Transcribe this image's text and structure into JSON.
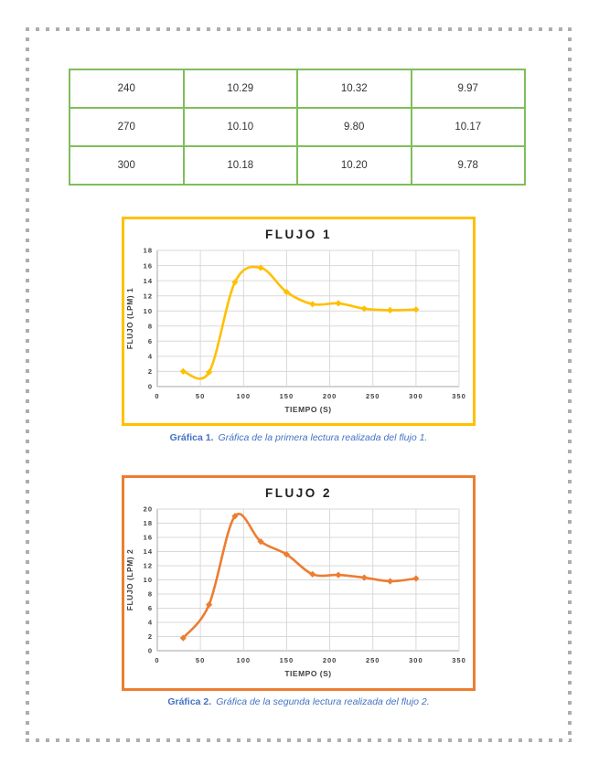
{
  "page": {
    "background": "#ffffff",
    "frame_dot_color": "#adadad"
  },
  "table": {
    "border_color": "#7fbe5a",
    "rows": [
      [
        "240",
        "10.29",
        "10.32",
        "9.97"
      ],
      [
        "270",
        "10.10",
        "9.80",
        "10.17"
      ],
      [
        "300",
        "10.18",
        "10.20",
        "9.78"
      ]
    ]
  },
  "chart_data": [
    {
      "type": "line",
      "title": "FLUJO 1",
      "xlabel": "TIEMPO (S)",
      "ylabel": "FLUJO (LPM) 1",
      "x": [
        30,
        60,
        90,
        120,
        150,
        180,
        210,
        240,
        270,
        300
      ],
      "values": [
        2.0,
        1.9,
        13.8,
        15.7,
        12.5,
        10.9,
        11.0,
        10.29,
        10.1,
        10.18
      ],
      "xlim": [
        0,
        350
      ],
      "ylim": [
        0,
        18
      ],
      "xticks": [
        0,
        50,
        100,
        150,
        200,
        250,
        300,
        350
      ],
      "yticks": [
        0,
        2,
        4,
        6,
        8,
        10,
        12,
        14,
        16,
        18
      ],
      "grid": true,
      "legend": false,
      "smooth": true,
      "marker": "diamond",
      "line_color": "#FFC000",
      "frame_color": "#FFC000"
    },
    {
      "type": "line",
      "title": "FLUJO 2",
      "xlabel": "TIEMPO (S)",
      "ylabel": "FLUJO (LPM) 2",
      "x": [
        30,
        60,
        90,
        120,
        150,
        180,
        210,
        240,
        270,
        300
      ],
      "values": [
        1.8,
        6.5,
        19.0,
        15.4,
        13.6,
        10.8,
        10.7,
        10.32,
        9.8,
        10.2
      ],
      "xlim": [
        0,
        350
      ],
      "ylim": [
        0,
        20
      ],
      "xticks": [
        0,
        50,
        100,
        150,
        200,
        250,
        300,
        350
      ],
      "yticks": [
        0,
        2,
        4,
        6,
        8,
        10,
        12,
        14,
        16,
        18,
        20
      ],
      "grid": true,
      "legend": false,
      "smooth": true,
      "marker": "diamond",
      "line_color": "#ED7D31",
      "frame_color": "#ED7D31"
    }
  ],
  "captions": [
    {
      "label": "Gráfica 1.",
      "text": "Gráfica de la primera lectura realizada del flujo 1."
    },
    {
      "label": "Gráfica 2.",
      "text": "Gráfica de la segunda lectura realizada del flujo 2."
    }
  ]
}
